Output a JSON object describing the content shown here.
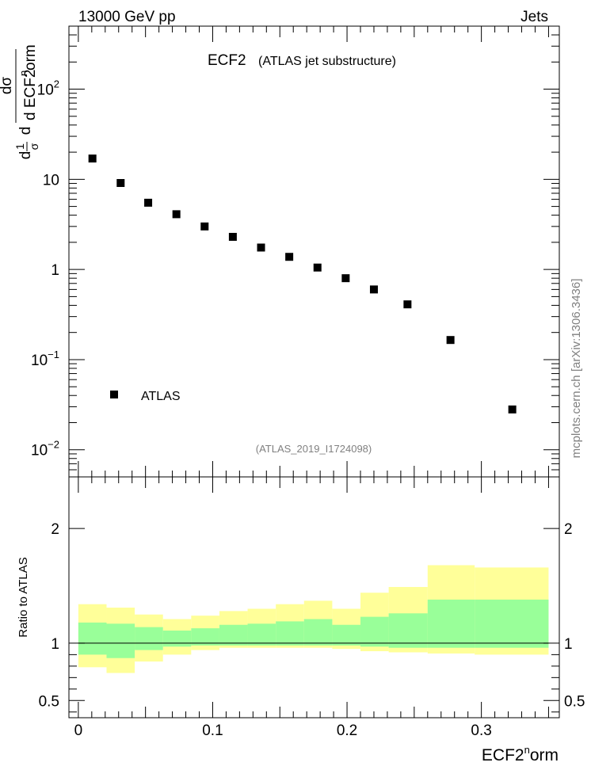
{
  "header": {
    "left": "13000 GeV pp",
    "right": "Jets"
  },
  "plot": {
    "title_main": "ECF2",
    "title_sub": "(ATLAS jet substructure)",
    "analysis_id": "(ATLAS_2019_I1724098)",
    "watermark": "mcplots.cern.ch [arXiv:1306.3436]",
    "legend_label": "ATLAS"
  },
  "axes": {
    "y_top": {
      "label_parts": [
        "d",
        "1",
        "σ",
        "dσ",
        "d ECF2",
        "n",
        "orm"
      ],
      "ticks": [
        {
          "label": "10",
          "sup": "−2",
          "value": 0.01
        },
        {
          "label": "10",
          "sup": "−1",
          "value": 0.1
        },
        {
          "label": "1",
          "sup": "",
          "value": 1
        },
        {
          "label": "10",
          "sup": "",
          "value": 10
        },
        {
          "label": "10",
          "sup": "2",
          "value": 100
        }
      ],
      "log": true,
      "range": [
        0.005,
        500
      ]
    },
    "y_bottom": {
      "label": "Ratio to ATLAS",
      "ticks": [
        "0.5",
        "1",
        "2"
      ],
      "tick_values": [
        0.5,
        1,
        2
      ],
      "range": [
        0.35,
        2.45
      ]
    },
    "x": {
      "label_main": "ECF2",
      "label_sup": "n",
      "label_tail": "orm",
      "ticks": [
        "0",
        "0.1",
        "0.2",
        "0.3"
      ],
      "tick_values": [
        0,
        0.1,
        0.2,
        0.3
      ],
      "range": [
        -0.007,
        0.358
      ]
    }
  },
  "colors": {
    "yellow_band": "#ffff99",
    "green_band": "#99ff99",
    "marker": "#000000",
    "watermark": "#808080"
  },
  "chart_data": {
    "type": "scatter",
    "series": [
      {
        "name": "ATLAS",
        "x": [
          0.0105,
          0.0315,
          0.052,
          0.073,
          0.094,
          0.115,
          0.136,
          0.157,
          0.178,
          0.199,
          0.22,
          0.245,
          0.277,
          0.323
        ],
        "y": [
          17.0,
          9.1,
          5.5,
          4.1,
          3.0,
          2.3,
          1.75,
          1.38,
          1.05,
          0.8,
          0.6,
          0.41,
          0.165,
          0.028
        ]
      }
    ],
    "ratio_bands": {
      "bin_edges": [
        0.0,
        0.021,
        0.042,
        0.063,
        0.084,
        0.105,
        0.126,
        0.147,
        0.168,
        0.189,
        0.21,
        0.231,
        0.26,
        0.295,
        0.35
      ],
      "yellow_low": [
        0.79,
        0.74,
        0.84,
        0.9,
        0.94,
        0.96,
        0.96,
        0.96,
        0.96,
        0.95,
        0.93,
        0.92,
        0.91,
        0.9
      ],
      "yellow_high": [
        1.34,
        1.31,
        1.25,
        1.21,
        1.24,
        1.28,
        1.3,
        1.34,
        1.37,
        1.3,
        1.44,
        1.49,
        1.68,
        1.66
      ],
      "green_low": [
        0.9,
        0.87,
        0.94,
        0.97,
        0.98,
        0.98,
        0.98,
        0.98,
        0.98,
        0.98,
        0.97,
        0.96,
        0.96,
        0.96
      ],
      "green_high": [
        1.18,
        1.17,
        1.14,
        1.11,
        1.13,
        1.16,
        1.17,
        1.19,
        1.21,
        1.16,
        1.23,
        1.26,
        1.38,
        1.38
      ]
    },
    "ratio_reference": 1.0
  }
}
